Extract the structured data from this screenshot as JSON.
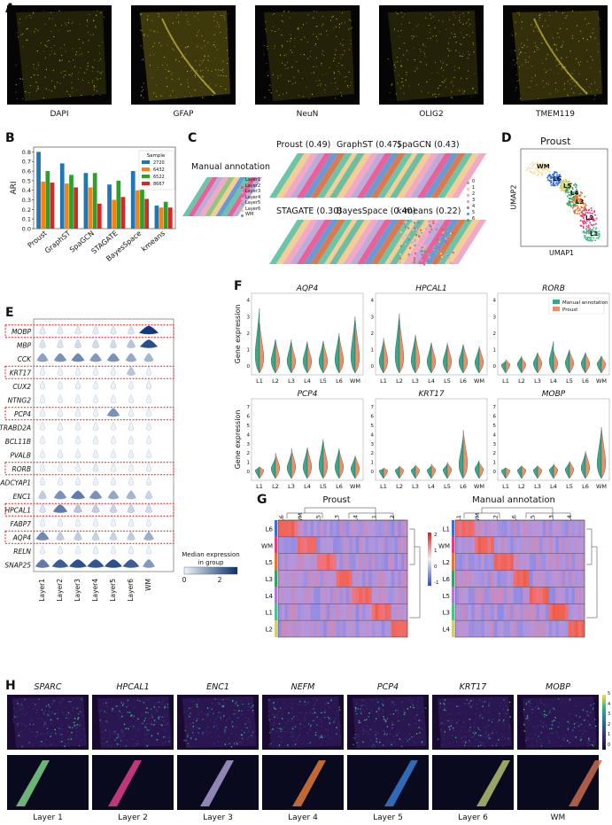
{
  "panel_labels": {
    "a": "A",
    "b": "B",
    "c": "C",
    "d": "D",
    "e": "E",
    "f": "F",
    "g": "G",
    "h": "H"
  },
  "panelA": {
    "captions": [
      "DAPI",
      "GFAP",
      "NeuN",
      "OLIG2",
      "TMEM119"
    ]
  },
  "panelC": {
    "manual_title": "Manual annotation",
    "legend_manual": [
      "Layer1",
      "Layer2",
      "Layer3",
      "Layer4",
      "Layer5",
      "Layer6",
      "WM"
    ],
    "method_titles": [
      "Proust (0.49)",
      "GraphST (0.47)",
      "SpaGCN (0.43)",
      "STAGATE (0.30)",
      "BayesSpace (0.40)",
      "k-means (0.22)"
    ],
    "legend_cluster": [
      "0",
      "1",
      "2",
      "3",
      "4",
      "5",
      "6"
    ],
    "manual_colors": [
      "#5bc0a0",
      "#e8508f",
      "#b7a2d6",
      "#f0a0c0",
      "#86c06e",
      "#f3c98a",
      "#5a8fd0"
    ],
    "cluster_colors": [
      "#5bc0a0",
      "#f3c98a",
      "#f0a0c0",
      "#b7a2d6",
      "#e8508f",
      "#5a8fd0",
      "#d96a3b"
    ]
  },
  "panelD": {
    "title": "Proust",
    "xlabel": "UMAP1",
    "ylabel": "UMAP2",
    "labels": [
      "WM",
      "L6",
      "L5",
      "L4",
      "L3",
      "L2",
      "L1"
    ]
  },
  "panelE": {
    "genes": [
      "MOBP",
      "MBP",
      "CCK",
      "KRT17",
      "CUX2",
      "NTNG2",
      "PCP4",
      "TRABD2A",
      "BCL11B",
      "PVALB",
      "RORB",
      "ADCYAP1",
      "ENC1",
      "HPCAL1",
      "FABP7",
      "AQP4",
      "RELN",
      "SNAP25"
    ],
    "highlighted": [
      "MOBP",
      "KRT17",
      "PCP4",
      "RORB",
      "HPCAL1",
      "AQP4"
    ],
    "groups": [
      "Layer1",
      "Layer2",
      "Layer3",
      "Layer4",
      "Layer5",
      "Layer6",
      "WM"
    ],
    "legend_title": "Median expression\nin group",
    "legend_ticks": [
      "0",
      "2"
    ]
  },
  "panelF": {
    "ylabel": "Gene expression",
    "genes": [
      "AQP4",
      "HPCAL1",
      "RORB",
      "PCP4",
      "KRT17",
      "MOBP"
    ],
    "groups": [
      "L1",
      "L2",
      "L3",
      "L4",
      "L5",
      "L6",
      "WM"
    ],
    "legend": [
      "Manual annotation",
      "Proust"
    ],
    "colors": [
      "#3aa888",
      "#ef8d66"
    ],
    "yticks_top": [
      "0",
      "1",
      "2",
      "3",
      "4"
    ],
    "yticks_bottom": [
      "0",
      "1",
      "2",
      "3",
      "4",
      "5",
      "6",
      "7"
    ]
  },
  "panelG": {
    "left_title": "Proust",
    "right_title": "Manual annotation",
    "left_rows": [
      "L6",
      "WM",
      "L5",
      "L3",
      "L4",
      "L1",
      "L2"
    ],
    "right_rows": [
      "L1",
      "WM",
      "L2",
      "L6",
      "L5",
      "L3",
      "L4"
    ],
    "left_cols": [
      "L6",
      "WM",
      "L5",
      "L3",
      "L4",
      "L1",
      "L2"
    ],
    "right_cols": [
      "L1",
      "WM",
      "L2",
      "L6",
      "L5",
      "L3",
      "L4"
    ],
    "colorbar_ticks": [
      "2",
      "1",
      "0",
      "-1"
    ]
  },
  "panelH": {
    "genes": [
      "SPARC",
      "HPCAL1",
      "ENC1",
      "NEFM",
      "PCP4",
      "KRT17",
      "MOBP"
    ],
    "layers": [
      "Layer 1",
      "Layer 2",
      "Layer 3",
      "Layer 4",
      "Layer 5",
      "Layer 6",
      "WM"
    ],
    "layer_colors": [
      "#7fd08a",
      "#e0408a",
      "#a89bd0",
      "#e07a3a",
      "#3a7ad0",
      "#b0c070",
      "#c86a50"
    ],
    "colorbar_ticks": [
      "5",
      "4",
      "3",
      "2",
      "1",
      "0"
    ]
  },
  "chart_data": [
    {
      "type": "bar",
      "title": "",
      "xlabel": "",
      "ylabel": "ARI",
      "ylim": [
        0,
        0.85
      ],
      "yticks": [
        "0.0",
        "0.1",
        "0.2",
        "0.3",
        "0.4",
        "0.5",
        "0.6",
        "0.7",
        "0.8"
      ],
      "legend_title": "Sample",
      "categories": [
        "Proust",
        "GraphST",
        "SpaGCN",
        "STAGATE",
        "BayesSpace",
        "kmeans"
      ],
      "series": [
        {
          "name": "2720",
          "color": "#1f77b4",
          "values": [
            0.8,
            0.68,
            0.58,
            0.46,
            0.6,
            0.24
          ]
        },
        {
          "name": "6432",
          "color": "#ff7f0e",
          "values": [
            0.49,
            0.47,
            0.43,
            0.3,
            0.4,
            0.22
          ]
        },
        {
          "name": "6522",
          "color": "#2ca02c",
          "values": [
            0.6,
            0.56,
            0.58,
            0.5,
            0.5,
            0.28
          ]
        },
        {
          "name": "8667",
          "color": "#d62728",
          "values": [
            0.48,
            0.43,
            0.26,
            0.33,
            0.31,
            0.22
          ]
        }
      ]
    }
  ]
}
